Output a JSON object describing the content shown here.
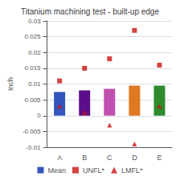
{
  "chart_data": {
    "type": "bar",
    "title": "Titanium machining test - built-up edge",
    "categories": [
      "A",
      "B",
      "C",
      "D",
      "E"
    ],
    "ylabel": "Inch",
    "ylim": [
      -0.01,
      0.03
    ],
    "yticks": [
      -0.01,
      -0.005,
      0,
      0.005,
      0.01,
      0.015,
      0.02,
      0.025,
      0.03
    ],
    "grid": true,
    "legend": "bottom",
    "series": [
      {
        "name": "Mean",
        "type": "bar",
        "color": "#3355bb",
        "colors": [
          "#3355bb",
          "#5c0e8a",
          "#c050b0",
          "#e07820",
          "#2e8b2e"
        ],
        "values": [
          0.0075,
          0.008,
          0.0085,
          0.0095,
          0.0095
        ]
      },
      {
        "name": "UNFL*",
        "type": "scatter",
        "color": "#cc1111",
        "marker": "square",
        "values": [
          0.011,
          0.015,
          0.018,
          0.027,
          0.016
        ]
      },
      {
        "name": "LMFL*",
        "type": "scatter",
        "color": "#cc1111",
        "marker": "triangle",
        "values": [
          0.003,
          0.001,
          -0.003,
          -0.009,
          0.003
        ]
      }
    ]
  }
}
